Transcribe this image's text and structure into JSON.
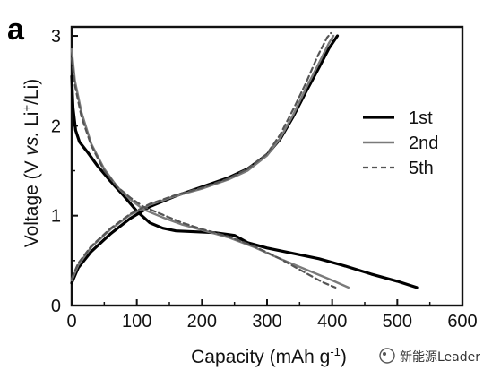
{
  "panel_label": "a",
  "watermark": {
    "text": "新能源Leader"
  },
  "chart_data": {
    "type": "line",
    "xlabel": "Capacity (mAh g",
    "xlabel_sup": "-1",
    "xlabel_end": ")",
    "ylabel_parts": {
      "a": "Voltage (V ",
      "b": "vs.",
      "c": " Li",
      "sup": "+",
      "d": "/Li)"
    },
    "xlim": [
      0,
      600
    ],
    "ylim": [
      0,
      3.1
    ],
    "xticks": [
      0,
      100,
      200,
      300,
      400,
      500,
      600
    ],
    "yticks": [
      0,
      1,
      2,
      3
    ],
    "xtick_labels": [
      "0",
      "100",
      "200",
      "300",
      "400",
      "500",
      "600"
    ],
    "ytick_labels": [
      "0",
      "1",
      "2",
      "3"
    ],
    "legend_position": "right",
    "grid": false,
    "series": [
      {
        "name": "1st",
        "color": "#000000",
        "dash": "",
        "width": 3.2,
        "segments": [
          [
            [
              0,
              2.55
            ],
            [
              2,
              2.2
            ],
            [
              6,
              1.95
            ],
            [
              12,
              1.82
            ],
            [
              25,
              1.7
            ],
            [
              40,
              1.55
            ],
            [
              60,
              1.38
            ],
            [
              80,
              1.22
            ],
            [
              100,
              1.05
            ],
            [
              120,
              0.92
            ],
            [
              140,
              0.86
            ],
            [
              160,
              0.83
            ],
            [
              190,
              0.82
            ],
            [
              220,
              0.81
            ],
            [
              250,
              0.78
            ],
            [
              270,
              0.7
            ],
            [
              300,
              0.64
            ],
            [
              340,
              0.58
            ],
            [
              380,
              0.52
            ],
            [
              420,
              0.44
            ],
            [
              460,
              0.35
            ],
            [
              500,
              0.27
            ],
            [
              530,
              0.2
            ]
          ],
          [
            [
              0,
              0.25
            ],
            [
              10,
              0.42
            ],
            [
              30,
              0.6
            ],
            [
              60,
              0.8
            ],
            [
              90,
              0.97
            ],
            [
              120,
              1.1
            ],
            [
              160,
              1.22
            ],
            [
              200,
              1.32
            ],
            [
              240,
              1.42
            ],
            [
              270,
              1.52
            ],
            [
              300,
              1.68
            ],
            [
              320,
              1.85
            ],
            [
              340,
              2.1
            ],
            [
              360,
              2.38
            ],
            [
              380,
              2.65
            ],
            [
              395,
              2.86
            ],
            [
              408,
              3.0
            ]
          ]
        ]
      },
      {
        "name": "2nd",
        "color": "#7a7a7a",
        "dash": "",
        "width": 2.4,
        "segments": [
          [
            [
              0,
              2.85
            ],
            [
              5,
              2.5
            ],
            [
              15,
              2.15
            ],
            [
              30,
              1.8
            ],
            [
              50,
              1.52
            ],
            [
              70,
              1.32
            ],
            [
              90,
              1.18
            ],
            [
              110,
              1.07
            ],
            [
              140,
              0.98
            ],
            [
              170,
              0.9
            ],
            [
              200,
              0.84
            ],
            [
              240,
              0.76
            ],
            [
              280,
              0.65
            ],
            [
              320,
              0.52
            ],
            [
              360,
              0.4
            ],
            [
              400,
              0.28
            ],
            [
              425,
              0.2
            ]
          ],
          [
            [
              0,
              0.28
            ],
            [
              10,
              0.45
            ],
            [
              30,
              0.65
            ],
            [
              60,
              0.85
            ],
            [
              90,
              1.01
            ],
            [
              120,
              1.12
            ],
            [
              160,
              1.22
            ],
            [
              200,
              1.3
            ],
            [
              240,
              1.4
            ],
            [
              270,
              1.5
            ],
            [
              300,
              1.67
            ],
            [
              320,
              1.86
            ],
            [
              340,
              2.12
            ],
            [
              360,
              2.42
            ],
            [
              380,
              2.7
            ],
            [
              395,
              2.92
            ],
            [
              402,
              3.0
            ]
          ]
        ]
      },
      {
        "name": "5th",
        "color": "#555555",
        "dash": "6,4",
        "width": 2.2,
        "segments": [
          [
            [
              0,
              2.75
            ],
            [
              5,
              2.45
            ],
            [
              15,
              2.1
            ],
            [
              30,
              1.78
            ],
            [
              50,
              1.5
            ],
            [
              70,
              1.32
            ],
            [
              90,
              1.2
            ],
            [
              110,
              1.1
            ],
            [
              140,
              1.01
            ],
            [
              170,
              0.92
            ],
            [
              200,
              0.85
            ],
            [
              240,
              0.77
            ],
            [
              280,
              0.66
            ],
            [
              320,
              0.52
            ],
            [
              350,
              0.4
            ],
            [
              385,
              0.26
            ],
            [
              405,
              0.2
            ]
          ],
          [
            [
              0,
              0.3
            ],
            [
              10,
              0.47
            ],
            [
              30,
              0.66
            ],
            [
              60,
              0.86
            ],
            [
              90,
              1.02
            ],
            [
              120,
              1.13
            ],
            [
              160,
              1.23
            ],
            [
              200,
              1.31
            ],
            [
              240,
              1.41
            ],
            [
              270,
              1.52
            ],
            [
              300,
              1.69
            ],
            [
              320,
              1.9
            ],
            [
              340,
              2.18
            ],
            [
              360,
              2.48
            ],
            [
              378,
              2.78
            ],
            [
              392,
              2.98
            ],
            [
              398,
              3.03
            ]
          ]
        ]
      }
    ]
  }
}
